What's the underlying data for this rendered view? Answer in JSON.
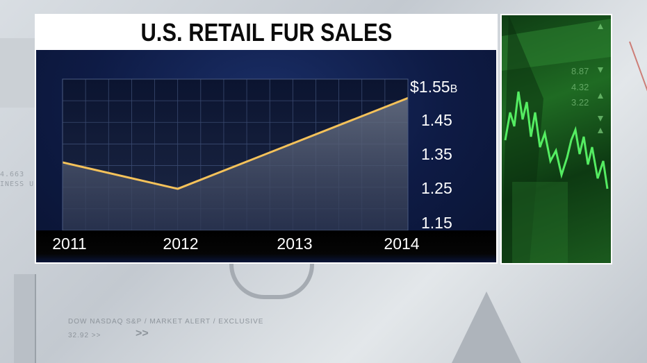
{
  "chart_data": {
    "type": "area",
    "title": "U.S. RETAIL FUR SALES",
    "categories": [
      "2011",
      "2012",
      "2013",
      "2014"
    ],
    "series": [
      {
        "values": [
          1.33,
          1.26,
          1.38,
          1.5
        ]
      }
    ],
    "y_ticks": [
      "1.15",
      "1.25",
      "1.35",
      "1.45",
      "$1.55"
    ],
    "y_unit": "B",
    "ylim": [
      1.15,
      1.55
    ],
    "grid": true,
    "colors": {
      "line": "#f5c25a",
      "fill": "#5a6478",
      "panel": "#0e1b45"
    }
  },
  "background": {
    "ticker_a": "4.663",
    "ticker_b": "INESS U",
    "footer_a": "DOW NASDAQ S&P  /  MARKET ALERT  /  EXCLUSIVE",
    "footer_b": "32.92 >>"
  },
  "video_panel": {
    "icon": "stock-ticker-video",
    "values": [
      "8.87",
      "4.32",
      "3.22"
    ]
  }
}
